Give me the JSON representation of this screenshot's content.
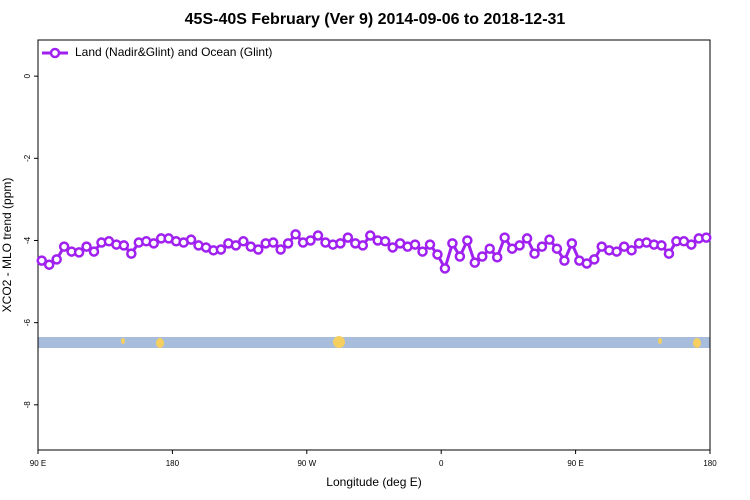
{
  "chart_data": {
    "type": "line",
    "title": "45S-40S February (Ver 9)   2014-09-06 to 2018-12-31",
    "x_label": "Longitude (deg E)",
    "y_label": "XCO2 - MLO trend (ppm)",
    "legend": "topleft",
    "x": [
      92.5,
      97.5,
      102.5,
      107.5,
      112.5,
      117.5,
      122.5,
      127.5,
      132.5,
      137.5,
      142.5,
      147.5,
      152.5,
      157.5,
      162.5,
      167.5,
      172.5,
      177.5,
      182.5,
      187.5,
      192.5,
      197.5,
      202.5,
      207.5,
      212.5,
      217.5,
      222.5,
      227.5,
      232.5,
      237.5,
      242.5,
      247.5,
      252.5,
      257.5,
      262.5,
      267.5,
      272.5,
      277.5,
      282.5,
      287.5,
      292.5,
      297.5,
      302.5,
      307.5,
      312.5,
      317.5,
      322.5,
      327.5,
      332.5,
      337.5,
      342.5,
      347.5,
      352.5,
      357.5,
      362.5,
      367.5,
      372.5,
      377.5,
      382.5,
      387.5,
      392.5,
      397.5,
      402.5,
      407.5,
      412.5,
      417.5,
      422.5,
      427.5,
      432.5,
      437.5,
      442.5,
      447.5,
      452.5,
      457.5,
      462.5,
      467.5,
      472.5,
      477.5,
      482.5,
      487.5,
      492.5,
      497.5,
      502.5,
      507.5,
      512.5,
      517.5,
      522.5,
      527.5,
      532.5,
      537.5
    ],
    "series": [
      {
        "name": "Land (Nadir&Glint) and Ocean (Glint)",
        "color": "#a020f0",
        "values": [
          -4.49,
          -4.59,
          -4.46,
          -4.15,
          -4.27,
          -4.29,
          -4.15,
          -4.27,
          -4.05,
          -4.02,
          -4.1,
          -4.12,
          -4.32,
          -4.05,
          -4.02,
          -4.07,
          -3.95,
          -3.95,
          -4.02,
          -4.05,
          -3.98,
          -4.12,
          -4.17,
          -4.24,
          -4.22,
          -4.07,
          -4.12,
          -4.02,
          -4.15,
          -4.22,
          -4.07,
          -4.05,
          -4.22,
          -4.07,
          -3.85,
          -4.05,
          -4.0,
          -3.88,
          -4.05,
          -4.1,
          -4.07,
          -3.93,
          -4.07,
          -4.12,
          -3.88,
          -4.0,
          -4.02,
          -4.17,
          -4.07,
          -4.15,
          -4.1,
          -4.27,
          -4.1,
          -4.34,
          -4.68,
          -4.07,
          -4.39,
          -4.0,
          -4.54,
          -4.39,
          -4.2,
          -4.41,
          -3.93,
          -4.2,
          -4.12,
          -3.95,
          -4.32,
          -4.15,
          -3.98,
          -4.2,
          -4.49,
          -4.07,
          -4.49,
          -4.56,
          -4.46,
          -4.15,
          -4.24,
          -4.27,
          -4.15,
          -4.24,
          -4.07,
          -4.05,
          -4.1,
          -4.12,
          -4.32,
          -4.02,
          -4.02,
          -4.1,
          -3.95,
          -3.93
        ]
      }
    ],
    "xlim": [
      90,
      540
    ],
    "xticks": [
      {
        "value": 90,
        "label": "90 E"
      },
      180,
      {
        "value": 270,
        "label": "90 W"
      },
      {
        "value": 360,
        "label": "0"
      },
      {
        "value": 450,
        "label": "90 E"
      },
      {
        "value": 540,
        "label": "180"
      }
    ],
    "ylim": [
      -9.1,
      0.88
    ],
    "yticks": [
      0,
      -2,
      -4,
      -6,
      -8
    ]
  }
}
